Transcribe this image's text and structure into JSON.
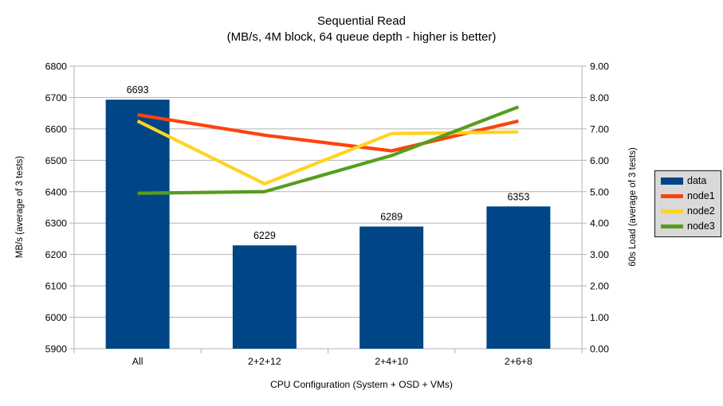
{
  "chart_data": {
    "type": "combo",
    "title": "Sequential Read",
    "subtitle": "(MB/s, 4M block, 64 queue depth - higher is better)",
    "categories": [
      "All",
      "2+2+12",
      "2+4+10",
      "2+6+8"
    ],
    "xlabel": "CPU Configuration (System + OSD + VMs)",
    "grid": true,
    "axes": {
      "left": {
        "label": "MB/s (average of 3 tests)",
        "min": 5900,
        "max": 6800,
        "step": 100,
        "format": "int"
      },
      "right": {
        "label": "60s Load (average of 3 tests)",
        "min": 0,
        "max": 9,
        "step": 1,
        "format": "2dp"
      }
    },
    "series": [
      {
        "name": "data",
        "type": "bar",
        "axis": "left",
        "color": "#004586",
        "values": [
          6693,
          6229,
          6289,
          6353
        ],
        "show_value_labels": true
      },
      {
        "name": "node1",
        "type": "line",
        "axis": "right",
        "color": "#ff420e",
        "values": [
          7.45,
          6.8,
          6.3,
          7.25
        ]
      },
      {
        "name": "node2",
        "type": "line",
        "axis": "right",
        "color": "#ffd320",
        "values": [
          7.25,
          5.25,
          6.85,
          6.9
        ]
      },
      {
        "name": "node3",
        "type": "line",
        "axis": "right",
        "color": "#579d1c",
        "values": [
          4.95,
          5.0,
          6.15,
          7.7
        ]
      }
    ],
    "legend": {
      "position": "right",
      "background": "#d9d9d9",
      "entries": [
        "data",
        "node1",
        "node2",
        "node3"
      ]
    },
    "colors": {
      "grid": "#b3b3b3",
      "axis": "#b3b3b3",
      "text": "#000000"
    }
  }
}
